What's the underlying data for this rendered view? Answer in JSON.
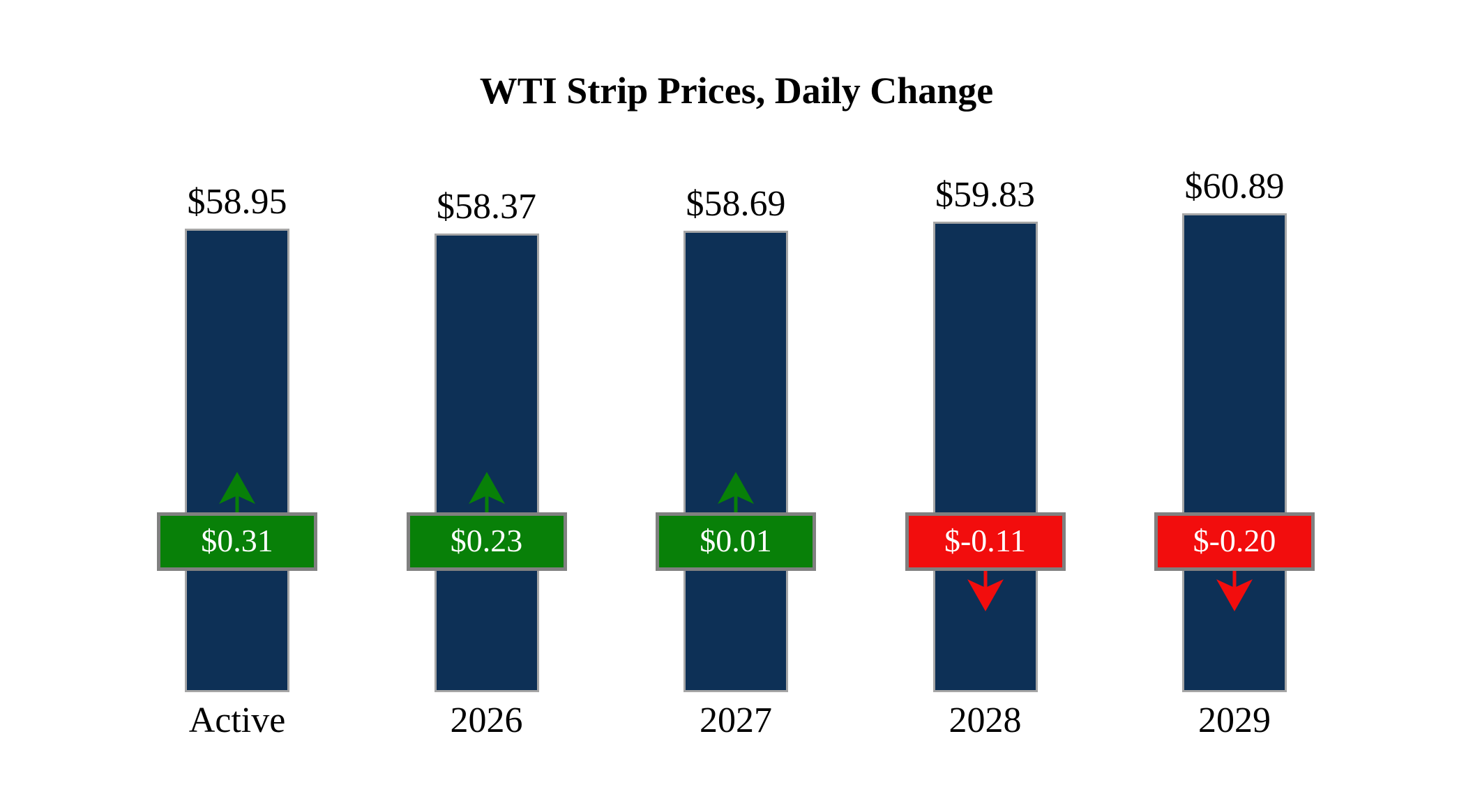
{
  "page": {
    "background": "#FFFFFF"
  },
  "title": "WTI Strip Prices, Daily Change",
  "colors": {
    "bar_fill": "#0D3056",
    "bar_border": "#A6A6A6",
    "positive": "#088008",
    "negative": "#F20D0D",
    "badge_border": "#808080",
    "badge_text": "#FFFFFF",
    "label_text": "#000000"
  },
  "chart_data": {
    "type": "bar",
    "title": "WTI Strip Prices, Daily Change",
    "categories": [
      "Active",
      "2026",
      "2027",
      "2028",
      "2029"
    ],
    "series": [
      {
        "name": "WTI Strip Price",
        "values": [
          58.95,
          58.37,
          58.69,
          59.83,
          60.89
        ]
      },
      {
        "name": "Daily Change",
        "values": [
          0.31,
          0.23,
          0.01,
          -0.11,
          -0.2
        ]
      }
    ],
    "ylim": [
      0,
      61
    ],
    "grid": false,
    "legend": "none",
    "bars": [
      {
        "category": "Active",
        "price": 58.95,
        "price_label": "$58.95",
        "change": 0.31,
        "change_label": "$0.31",
        "direction": "up"
      },
      {
        "category": "2026",
        "price": 58.37,
        "price_label": "$58.37",
        "change": 0.23,
        "change_label": "$0.23",
        "direction": "up"
      },
      {
        "category": "2027",
        "price": 58.69,
        "price_label": "$58.69",
        "change": 0.01,
        "change_label": "$0.01",
        "direction": "up"
      },
      {
        "category": "2028",
        "price": 59.83,
        "price_label": "$59.83",
        "change": -0.11,
        "change_label": "$-0.11",
        "direction": "down"
      },
      {
        "category": "2029",
        "price": 60.89,
        "price_label": "$60.89",
        "change": -0.2,
        "change_label": "$-0.20",
        "direction": "down"
      }
    ]
  }
}
